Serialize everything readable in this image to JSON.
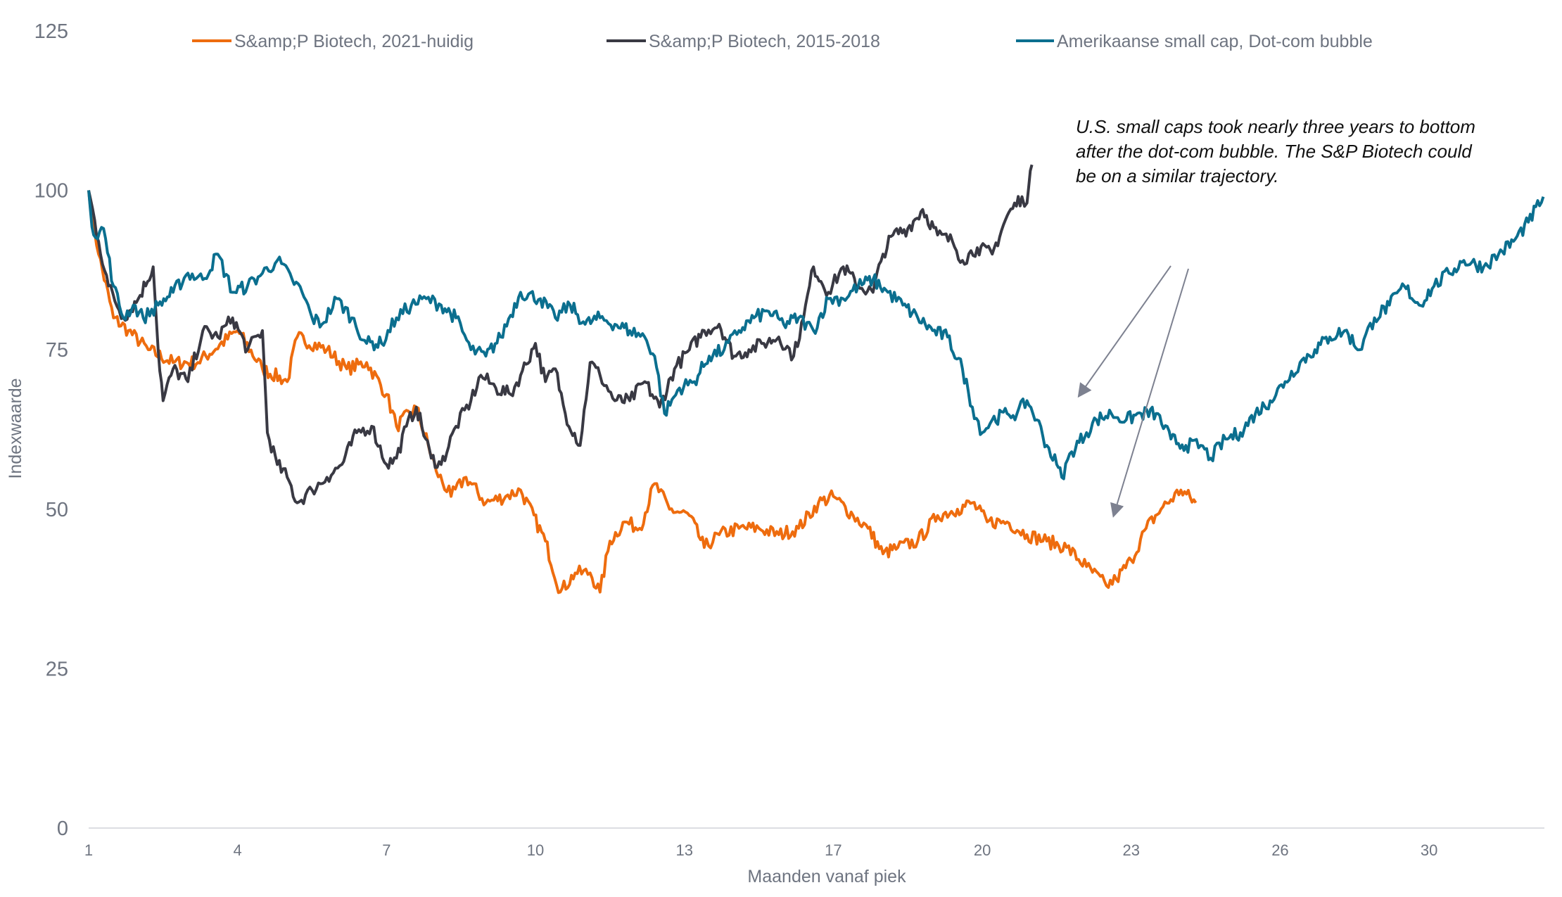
{
  "chart_data": {
    "type": "line",
    "title": "",
    "xlabel": "Maanden vanaf piek",
    "ylabel": "Indexwaarde",
    "ylim": [
      0,
      125
    ],
    "yticks": [
      0,
      25,
      50,
      75,
      100,
      125
    ],
    "xlim_months_from_first_tick": [
      0,
      29.3
    ],
    "xtick_labels": [
      "1",
      "4",
      "7",
      "10",
      "13",
      "17",
      "20",
      "23",
      "26",
      "30"
    ],
    "grid": false,
    "legend_position": "top",
    "annotation": [
      "U.S. small caps took nearly three years to bottom",
      "after the dot-com bubble. The S&P Biotech could",
      "be on a similar trajectory."
    ],
    "series": [
      {
        "name": "S&amp;P Biotech, 2021-huidig",
        "color": "#EE6C0E",
        "points": [
          [
            0,
            100
          ],
          [
            0.2,
            90
          ],
          [
            0.5,
            80
          ],
          [
            0.8,
            78
          ],
          [
            1.2,
            75
          ],
          [
            1.7,
            73
          ],
          [
            2.2,
            73
          ],
          [
            3.0,
            78
          ],
          [
            3.5,
            72
          ],
          [
            4.0,
            70
          ],
          [
            4.2,
            77
          ],
          [
            4.8,
            75
          ],
          [
            5.2,
            72
          ],
          [
            5.6,
            73
          ],
          [
            6.0,
            68
          ],
          [
            6.2,
            63
          ],
          [
            6.6,
            66
          ],
          [
            7.0,
            56
          ],
          [
            7.3,
            52
          ],
          [
            7.6,
            55
          ],
          [
            8.0,
            51
          ],
          [
            8.4,
            52
          ],
          [
            8.7,
            53
          ],
          [
            9.2,
            45
          ],
          [
            9.5,
            37
          ],
          [
            9.8,
            40
          ],
          [
            10.1,
            40
          ],
          [
            10.3,
            37
          ],
          [
            10.5,
            45
          ],
          [
            10.8,
            48
          ],
          [
            11.1,
            47
          ],
          [
            11.4,
            54
          ],
          [
            11.7,
            50
          ],
          [
            12.1,
            49
          ],
          [
            12.4,
            44
          ],
          [
            12.7,
            46
          ],
          [
            13.1,
            47
          ],
          [
            13.5,
            47
          ],
          [
            13.9,
            46
          ],
          [
            14.3,
            47
          ],
          [
            14.7,
            51
          ],
          [
            15.0,
            52
          ],
          [
            15.4,
            49
          ],
          [
            15.7,
            47
          ],
          [
            16.0,
            43
          ],
          [
            16.3,
            44
          ],
          [
            16.7,
            45
          ],
          [
            17.1,
            49
          ],
          [
            17.5,
            50
          ],
          [
            17.8,
            51
          ],
          [
            18.1,
            48
          ],
          [
            18.5,
            48
          ],
          [
            18.9,
            46
          ],
          [
            19.3,
            45
          ],
          [
            19.7,
            44
          ],
          [
            20.1,
            41
          ],
          [
            20.5,
            38
          ],
          [
            20.7,
            39
          ],
          [
            21.0,
            42
          ],
          [
            21.3,
            47
          ],
          [
            21.6,
            50
          ],
          [
            22.0,
            53
          ],
          [
            22.3,
            51
          ]
        ]
      },
      {
        "name": "S&amp;P Biotech, 2015-2018",
        "color": "#393943",
        "points": [
          [
            0,
            100
          ],
          [
            0.2,
            92
          ],
          [
            0.4,
            85
          ],
          [
            0.7,
            80
          ],
          [
            1.0,
            83
          ],
          [
            1.3,
            88
          ],
          [
            1.4,
            75
          ],
          [
            1.5,
            67
          ],
          [
            1.7,
            72
          ],
          [
            2.0,
            70
          ],
          [
            2.3,
            78
          ],
          [
            2.6,
            77
          ],
          [
            2.9,
            80
          ],
          [
            3.2,
            75
          ],
          [
            3.5,
            78
          ],
          [
            3.6,
            62
          ],
          [
            3.8,
            57
          ],
          [
            4.0,
            55
          ],
          [
            4.2,
            51
          ],
          [
            4.5,
            53
          ],
          [
            4.8,
            55
          ],
          [
            5.1,
            57
          ],
          [
            5.4,
            62
          ],
          [
            5.7,
            63
          ],
          [
            6.0,
            57
          ],
          [
            6.2,
            58
          ],
          [
            6.4,
            63
          ],
          [
            6.6,
            66
          ],
          [
            6.9,
            58
          ],
          [
            7.1,
            57
          ],
          [
            7.4,
            63
          ],
          [
            7.7,
            67
          ],
          [
            7.9,
            71
          ],
          [
            8.2,
            69
          ],
          [
            8.5,
            68
          ],
          [
            8.7,
            71
          ],
          [
            9.0,
            76
          ],
          [
            9.2,
            70
          ],
          [
            9.4,
            72
          ],
          [
            9.6,
            65
          ],
          [
            9.9,
            60
          ],
          [
            10.1,
            73
          ],
          [
            10.3,
            71
          ],
          [
            10.6,
            67
          ],
          [
            10.9,
            67
          ],
          [
            11.2,
            70
          ],
          [
            11.5,
            66
          ],
          [
            11.8,
            72
          ],
          [
            12.1,
            75
          ],
          [
            12.4,
            78
          ],
          [
            12.7,
            79
          ],
          [
            13.0,
            74
          ],
          [
            13.3,
            75
          ],
          [
            13.6,
            76
          ],
          [
            13.9,
            77
          ],
          [
            14.2,
            74
          ],
          [
            14.4,
            80
          ],
          [
            14.6,
            88
          ],
          [
            14.9,
            84
          ],
          [
            15.2,
            88
          ],
          [
            15.5,
            85
          ],
          [
            15.8,
            84
          ],
          [
            16.0,
            90
          ],
          [
            16.2,
            93
          ],
          [
            16.5,
            94
          ],
          [
            16.8,
            97
          ],
          [
            17.1,
            93
          ],
          [
            17.4,
            92
          ],
          [
            17.6,
            89
          ],
          [
            17.9,
            91
          ],
          [
            18.2,
            90
          ],
          [
            18.5,
            96
          ],
          [
            18.8,
            99
          ],
          [
            18.9,
            98
          ],
          [
            19.0,
            104
          ]
        ]
      },
      {
        "name": "Amerikaanse small cap, Dot-com bubble",
        "color": "#0B6F8F",
        "points": [
          [
            0,
            100
          ],
          [
            0.1,
            93
          ],
          [
            0.3,
            94
          ],
          [
            0.5,
            85
          ],
          [
            0.7,
            80
          ],
          [
            0.9,
            82
          ],
          [
            1.1,
            80
          ],
          [
            1.4,
            82
          ],
          [
            1.7,
            84
          ],
          [
            2.0,
            87
          ],
          [
            2.3,
            86
          ],
          [
            2.6,
            90
          ],
          [
            2.9,
            84
          ],
          [
            3.2,
            85
          ],
          [
            3.5,
            87
          ],
          [
            3.8,
            89
          ],
          [
            4.1,
            86
          ],
          [
            4.3,
            84
          ],
          [
            4.5,
            80
          ],
          [
            4.7,
            79
          ],
          [
            5.0,
            83
          ],
          [
            5.3,
            80
          ],
          [
            5.6,
            76
          ],
          [
            5.9,
            76
          ],
          [
            6.2,
            80
          ],
          [
            6.5,
            82
          ],
          [
            6.8,
            83
          ],
          [
            7.1,
            82
          ],
          [
            7.4,
            80
          ],
          [
            7.7,
            75
          ],
          [
            8.0,
            74
          ],
          [
            8.3,
            77
          ],
          [
            8.7,
            84
          ],
          [
            9.1,
            83
          ],
          [
            9.4,
            80
          ],
          [
            9.7,
            82
          ],
          [
            10.0,
            79
          ],
          [
            10.3,
            80
          ],
          [
            10.6,
            79
          ],
          [
            10.9,
            78
          ],
          [
            11.2,
            77
          ],
          [
            11.4,
            74
          ],
          [
            11.6,
            65
          ],
          [
            11.9,
            69
          ],
          [
            12.2,
            70
          ],
          [
            12.5,
            74
          ],
          [
            12.8,
            75
          ],
          [
            13.1,
            78
          ],
          [
            13.4,
            80
          ],
          [
            13.7,
            81
          ],
          [
            14.0,
            79
          ],
          [
            14.3,
            80
          ],
          [
            14.6,
            78
          ],
          [
            14.9,
            83
          ],
          [
            15.2,
            83
          ],
          [
            15.5,
            85
          ],
          [
            15.8,
            86
          ],
          [
            16.1,
            84
          ],
          [
            16.4,
            82
          ],
          [
            16.7,
            80
          ],
          [
            17.0,
            78
          ],
          [
            17.3,
            77
          ],
          [
            17.6,
            72
          ],
          [
            17.8,
            66
          ],
          [
            18.0,
            62
          ],
          [
            18.2,
            64
          ],
          [
            18.5,
            65
          ],
          [
            18.7,
            65
          ],
          [
            18.9,
            67
          ],
          [
            19.1,
            64
          ],
          [
            19.3,
            60
          ],
          [
            19.5,
            57
          ],
          [
            19.6,
            55
          ],
          [
            19.8,
            59
          ],
          [
            20.1,
            62
          ],
          [
            20.3,
            64
          ],
          [
            20.6,
            65
          ],
          [
            20.9,
            64
          ],
          [
            21.2,
            65
          ],
          [
            21.5,
            65
          ],
          [
            21.8,
            61
          ],
          [
            22.1,
            60
          ],
          [
            22.4,
            60
          ],
          [
            22.6,
            58
          ],
          [
            22.9,
            61
          ],
          [
            23.2,
            62
          ],
          [
            23.5,
            65
          ],
          [
            23.8,
            67
          ],
          [
            24.1,
            70
          ],
          [
            24.4,
            73
          ],
          [
            24.7,
            75
          ],
          [
            25.0,
            77
          ],
          [
            25.3,
            78
          ],
          [
            25.6,
            75
          ],
          [
            25.9,
            80
          ],
          [
            26.2,
            82
          ],
          [
            26.5,
            85
          ],
          [
            26.8,
            82
          ],
          [
            27.1,
            85
          ],
          [
            27.4,
            87
          ],
          [
            27.7,
            89
          ],
          [
            28.1,
            88
          ],
          [
            28.4,
            90
          ],
          [
            28.7,
            92
          ],
          [
            29.0,
            95
          ],
          [
            29.3,
            99
          ]
        ]
      }
    ]
  }
}
